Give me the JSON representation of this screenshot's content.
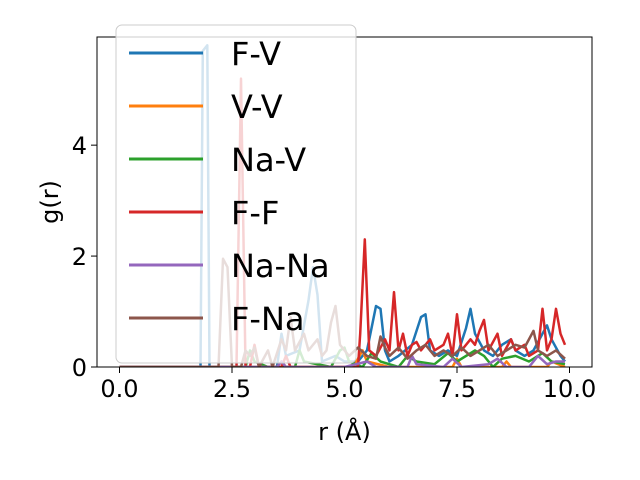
{
  "chart_data": {
    "type": "line",
    "xlabel": "r (Å)",
    "ylabel": "g(r)",
    "xlim": [
      -0.5,
      10.5
    ],
    "ylim": [
      0,
      5.95
    ],
    "xticks": [
      0.0,
      2.5,
      5.0,
      7.5,
      10.0
    ],
    "xtick_labels": [
      "0.0",
      "2.5",
      "5.0",
      "7.5",
      "10.0"
    ],
    "yticks": [
      0,
      2,
      4
    ],
    "ytick_labels": [
      "0",
      "2",
      "4"
    ],
    "grid": false,
    "legend_position": "top-left",
    "series": [
      {
        "name": "F-V",
        "color": "#1f77b4",
        "points": [
          [
            0,
            0
          ],
          [
            1.7,
            0
          ],
          [
            1.8,
            0
          ],
          [
            1.85,
            5.7
          ],
          [
            1.95,
            5.8
          ],
          [
            2.0,
            0
          ],
          [
            2.1,
            0
          ],
          [
            3.5,
            0
          ],
          [
            3.6,
            0.6
          ],
          [
            3.7,
            0.2
          ],
          [
            4.0,
            0.3
          ],
          [
            4.2,
            1.2
          ],
          [
            4.3,
            1.8
          ],
          [
            4.4,
            1.3
          ],
          [
            4.5,
            0.1
          ],
          [
            4.8,
            0.2
          ],
          [
            5.0,
            0.1
          ],
          [
            5.3,
            0.1
          ],
          [
            5.5,
            0.3
          ],
          [
            5.6,
            0.7
          ],
          [
            5.7,
            1.1
          ],
          [
            5.8,
            1.05
          ],
          [
            5.9,
            0.3
          ],
          [
            6.0,
            0.1
          ],
          [
            6.2,
            0.2
          ],
          [
            6.5,
            0.4
          ],
          [
            6.7,
            0.9
          ],
          [
            6.8,
            0.95
          ],
          [
            6.9,
            0.3
          ],
          [
            7.1,
            0.2
          ],
          [
            7.3,
            0.3
          ],
          [
            7.5,
            0.2
          ],
          [
            7.7,
            0.7
          ],
          [
            7.8,
            1.05
          ],
          [
            7.9,
            0.6
          ],
          [
            8.1,
            0.3
          ],
          [
            8.3,
            0.2
          ],
          [
            8.5,
            0.4
          ],
          [
            8.7,
            0.5
          ],
          [
            8.8,
            0.3
          ],
          [
            9.0,
            0.2
          ],
          [
            9.2,
            0.3
          ],
          [
            9.4,
            0.6
          ],
          [
            9.5,
            0.75
          ],
          [
            9.6,
            0.5
          ],
          [
            9.8,
            0.2
          ],
          [
            9.9,
            0.1
          ]
        ]
      },
      {
        "name": "V-V",
        "color": "#ff7f0e",
        "points": [
          [
            0,
            0
          ],
          [
            3.5,
            0
          ],
          [
            3.6,
            0.1
          ],
          [
            3.7,
            0
          ],
          [
            5.2,
            0
          ],
          [
            5.3,
            0.15
          ],
          [
            5.4,
            0.3
          ],
          [
            5.5,
            0.1
          ],
          [
            6.0,
            0
          ],
          [
            7.4,
            0
          ],
          [
            7.5,
            0.15
          ],
          [
            7.6,
            0
          ],
          [
            8.5,
            0
          ],
          [
            8.6,
            0.1
          ],
          [
            8.7,
            0
          ],
          [
            9.5,
            0
          ],
          [
            9.6,
            0.1
          ],
          [
            9.9,
            0
          ]
        ]
      },
      {
        "name": "Na-V",
        "color": "#2ca02c",
        "points": [
          [
            0,
            0
          ],
          [
            2.8,
            0
          ],
          [
            2.9,
            0.3
          ],
          [
            3.0,
            0.1
          ],
          [
            3.3,
            0
          ],
          [
            3.9,
            0
          ],
          [
            4.0,
            0.3
          ],
          [
            4.1,
            0.1
          ],
          [
            4.7,
            0
          ],
          [
            4.9,
            0.3
          ],
          [
            5.0,
            0.35
          ],
          [
            5.1,
            0.1
          ],
          [
            5.4,
            0
          ],
          [
            5.6,
            0.25
          ],
          [
            5.8,
            0.1
          ],
          [
            6.2,
            0
          ],
          [
            6.4,
            0.2
          ],
          [
            6.6,
            0.1
          ],
          [
            7.0,
            0.05
          ],
          [
            7.3,
            0.25
          ],
          [
            7.5,
            0.1
          ],
          [
            7.9,
            0.3
          ],
          [
            8.1,
            0.2
          ],
          [
            8.3,
            0
          ],
          [
            8.5,
            0.15
          ],
          [
            8.8,
            0.2
          ],
          [
            9.1,
            0.1
          ],
          [
            9.4,
            0.25
          ],
          [
            9.6,
            0.1
          ],
          [
            9.9,
            0.05
          ]
        ]
      },
      {
        "name": "F-F",
        "color": "#d62728",
        "points": [
          [
            0,
            0
          ],
          [
            2.5,
            0
          ],
          [
            2.6,
            0
          ],
          [
            2.7,
            5.2
          ],
          [
            2.8,
            0
          ],
          [
            2.9,
            0
          ],
          [
            3.0,
            0.4
          ],
          [
            3.1,
            0
          ],
          [
            3.6,
            0
          ],
          [
            3.7,
            0.2
          ],
          [
            3.8,
            0
          ],
          [
            4.5,
            0
          ],
          [
            5.3,
            0
          ],
          [
            5.35,
            0.6
          ],
          [
            5.45,
            2.3
          ],
          [
            5.55,
            0.3
          ],
          [
            5.7,
            0.2
          ],
          [
            5.9,
            0.5
          ],
          [
            6.0,
            0.3
          ],
          [
            6.1,
            1.35
          ],
          [
            6.2,
            0.3
          ],
          [
            6.3,
            0.6
          ],
          [
            6.4,
            0.2
          ],
          [
            6.5,
            0.4
          ],
          [
            6.6,
            0.45
          ],
          [
            6.7,
            0.3
          ],
          [
            6.9,
            0.5
          ],
          [
            7.0,
            0.3
          ],
          [
            7.2,
            0.4
          ],
          [
            7.3,
            0.6
          ],
          [
            7.4,
            0.2
          ],
          [
            7.5,
            0.95
          ],
          [
            7.6,
            0.3
          ],
          [
            7.8,
            0.5
          ],
          [
            7.9,
            0.4
          ],
          [
            8.0,
            0.65
          ],
          [
            8.1,
            0.85
          ],
          [
            8.2,
            0.3
          ],
          [
            8.4,
            0.6
          ],
          [
            8.5,
            0.2
          ],
          [
            8.7,
            0.5
          ],
          [
            8.8,
            0.3
          ],
          [
            9.0,
            0.4
          ],
          [
            9.1,
            0.2
          ],
          [
            9.3,
            0.3
          ],
          [
            9.4,
            1.05
          ],
          [
            9.5,
            0.3
          ],
          [
            9.6,
            0.5
          ],
          [
            9.7,
            1.05
          ],
          [
            9.8,
            0.6
          ],
          [
            9.9,
            0.4
          ]
        ]
      },
      {
        "name": "Na-Na",
        "color": "#9467bd",
        "points": [
          [
            0,
            0
          ],
          [
            3.5,
            0
          ],
          [
            3.6,
            0.1
          ],
          [
            3.7,
            0
          ],
          [
            5.0,
            0
          ],
          [
            5.5,
            0.1
          ],
          [
            5.7,
            0
          ],
          [
            6.4,
            0
          ],
          [
            6.5,
            0.2
          ],
          [
            6.6,
            0.05
          ],
          [
            7.2,
            0
          ],
          [
            7.4,
            0.15
          ],
          [
            7.6,
            0
          ],
          [
            8.2,
            0.05
          ],
          [
            8.4,
            0.15
          ],
          [
            8.6,
            0
          ],
          [
            9.1,
            0
          ],
          [
            9.3,
            0.2
          ],
          [
            9.5,
            0.05
          ],
          [
            9.7,
            0.1
          ],
          [
            9.9,
            0.1
          ]
        ]
      },
      {
        "name": "F-Na",
        "color": "#8c564b",
        "points": [
          [
            0,
            0
          ],
          [
            2.2,
            0
          ],
          [
            2.3,
            1.95
          ],
          [
            2.4,
            1.8
          ],
          [
            2.5,
            0
          ],
          [
            2.7,
            0
          ],
          [
            2.8,
            0.3
          ],
          [
            2.9,
            0.2
          ],
          [
            3.0,
            0.35
          ],
          [
            3.1,
            0
          ],
          [
            3.3,
            0.3
          ],
          [
            3.4,
            0
          ],
          [
            3.6,
            0.5
          ],
          [
            3.7,
            0.3
          ],
          [
            3.8,
            0.9
          ],
          [
            3.9,
            0.3
          ],
          [
            4.1,
            0.6
          ],
          [
            4.2,
            0.3
          ],
          [
            4.4,
            0.5
          ],
          [
            4.5,
            0.2
          ],
          [
            4.6,
            0.3
          ],
          [
            4.7,
            0.8
          ],
          [
            4.8,
            1.1
          ],
          [
            4.9,
            0.4
          ],
          [
            5.1,
            0.2
          ],
          [
            5.3,
            0.35
          ],
          [
            5.5,
            0.2
          ],
          [
            5.7,
            0.15
          ],
          [
            5.8,
            0.55
          ],
          [
            5.9,
            0.35
          ],
          [
            6.0,
            0.2
          ],
          [
            6.2,
            0.35
          ],
          [
            6.4,
            0.15
          ],
          [
            6.6,
            0.3
          ],
          [
            6.8,
            0.4
          ],
          [
            7.0,
            0.2
          ],
          [
            7.2,
            0.3
          ],
          [
            7.4,
            0.2
          ],
          [
            7.6,
            0.35
          ],
          [
            7.8,
            0.2
          ],
          [
            8.0,
            0.3
          ],
          [
            8.2,
            0.4
          ],
          [
            8.4,
            0.2
          ],
          [
            8.6,
            0.3
          ],
          [
            8.8,
            0.4
          ],
          [
            9.0,
            0.35
          ],
          [
            9.2,
            0.65
          ],
          [
            9.3,
            0.3
          ],
          [
            9.5,
            0.2
          ],
          [
            9.7,
            0.3
          ],
          [
            9.9,
            0.15
          ]
        ]
      }
    ]
  }
}
